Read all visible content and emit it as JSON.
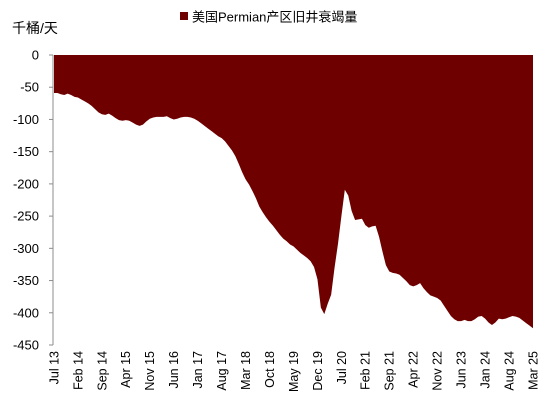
{
  "chart_data": {
    "type": "area",
    "ylabel": "千桶/天",
    "ylim": [
      -450,
      0
    ],
    "yticks": [
      0,
      -50,
      -100,
      -150,
      -200,
      -250,
      -300,
      -350,
      -400,
      -450
    ],
    "grid": false,
    "legend": "top",
    "xtick_labels": [
      "Jul 13",
      "Feb 14",
      "Sep 14",
      "Apr 15",
      "Nov 15",
      "Jun 16",
      "Jan 17",
      "Aug 17",
      "Mar 18",
      "Oct 18",
      "May 19",
      "Dec 19",
      "Jul 20",
      "Feb 21",
      "Sep 21",
      "Apr 22",
      "Nov 22",
      "Jun 23",
      "Jan 24",
      "Aug 24",
      "Mar 25"
    ],
    "x": [
      "Jul 13",
      "Aug 13",
      "Sep 13",
      "Oct 13",
      "Nov 13",
      "Dec 13",
      "Jan 14",
      "Feb 14",
      "Mar 14",
      "Apr 14",
      "May 14",
      "Jun 14",
      "Jul 14",
      "Aug 14",
      "Sep 14",
      "Oct 14",
      "Nov 14",
      "Dec 14",
      "Jan 15",
      "Feb 15",
      "Mar 15",
      "Apr 15",
      "May 15",
      "Jun 15",
      "Jul 15",
      "Aug 15",
      "Sep 15",
      "Oct 15",
      "Nov 15",
      "Dec 15",
      "Jan 16",
      "Feb 16",
      "Mar 16",
      "Apr 16",
      "May 16",
      "Jun 16",
      "Jul 16",
      "Aug 16",
      "Sep 16",
      "Oct 16",
      "Nov 16",
      "Dec 16",
      "Jan 17",
      "Feb 17",
      "Mar 17",
      "Apr 17",
      "May 17",
      "Jun 17",
      "Jul 17",
      "Aug 17",
      "Sep 17",
      "Oct 17",
      "Nov 17",
      "Dec 17",
      "Jan 18",
      "Feb 18",
      "Mar 18",
      "Apr 18",
      "May 18",
      "Jun 18",
      "Jul 18",
      "Aug 18",
      "Sep 18",
      "Oct 18",
      "Nov 18",
      "Dec 18",
      "Jan 19",
      "Feb 19",
      "Mar 19",
      "Apr 19",
      "May 19",
      "Jun 19",
      "Jul 19",
      "Aug 19",
      "Sep 19",
      "Oct 19",
      "Nov 19",
      "Dec 19",
      "Jan 20",
      "Feb 20",
      "Mar 20",
      "Apr 20",
      "May 20",
      "Jun 20",
      "Jul 20",
      "Aug 20",
      "Sep 20",
      "Oct 20",
      "Nov 20",
      "Dec 20",
      "Jan 21",
      "Feb 21",
      "Mar 21",
      "Apr 21",
      "May 21",
      "Jun 21",
      "Jul 21",
      "Aug 21",
      "Sep 21",
      "Oct 21",
      "Nov 21",
      "Dec 21",
      "Jan 22",
      "Feb 22",
      "Mar 22",
      "Apr 22",
      "May 22",
      "Jun 22",
      "Jul 22",
      "Aug 22",
      "Sep 22",
      "Oct 22",
      "Nov 22",
      "Dec 22",
      "Jan 23",
      "Feb 23",
      "Mar 23",
      "Apr 23",
      "May 23",
      "Jun 23",
      "Jul 23",
      "Aug 23",
      "Sep 23",
      "Oct 23",
      "Nov 23",
      "Dec 23",
      "Jan 24",
      "Feb 24",
      "Mar 24",
      "Apr 24",
      "May 24",
      "Jun 24",
      "Jul 24",
      "Aug 24",
      "Sep 24",
      "Oct 24",
      "Nov 24",
      "Dec 24",
      "Jan 25",
      "Feb 25",
      "Mar 25"
    ],
    "series": [
      {
        "name": "美国Permian产区旧井衰竭量",
        "color": "#6E0000",
        "values": [
          -59,
          -59,
          -61,
          -62,
          -60,
          -62,
          -65,
          -66,
          -69,
          -72,
          -75,
          -79,
          -84,
          -89,
          -92,
          -93,
          -91,
          -94,
          -98,
          -101,
          -102,
          -101,
          -102,
          -105,
          -108,
          -110,
          -108,
          -103,
          -99,
          -97,
          -96,
          -96,
          -96,
          -95,
          -98,
          -100,
          -99,
          -97,
          -96,
          -96,
          -97,
          -99,
          -102,
          -106,
          -110,
          -114,
          -118,
          -122,
          -126,
          -129,
          -134,
          -141,
          -148,
          -157,
          -169,
          -182,
          -193,
          -201,
          -211,
          -222,
          -235,
          -244,
          -252,
          -259,
          -265,
          -272,
          -279,
          -285,
          -289,
          -294,
          -297,
          -302,
          -307,
          -311,
          -315,
          -320,
          -329,
          -348,
          -392,
          -402,
          -386,
          -372,
          -330,
          -293,
          -250,
          -209,
          -218,
          -242,
          -256,
          -255,
          -254,
          -264,
          -268,
          -266,
          -265,
          -282,
          -305,
          -326,
          -336,
          -338,
          -339,
          -341,
          -346,
          -351,
          -357,
          -359,
          -357,
          -354,
          -362,
          -368,
          -373,
          -375,
          -377,
          -381,
          -389,
          -397,
          -405,
          -410,
          -413,
          -413,
          -411,
          -413,
          -413,
          -410,
          -406,
          -405,
          -409,
          -415,
          -419,
          -415,
          -409,
          -410,
          -409,
          -407,
          -405,
          -406,
          -408,
          -412,
          -416,
          -420,
          -424
        ]
      }
    ]
  }
}
